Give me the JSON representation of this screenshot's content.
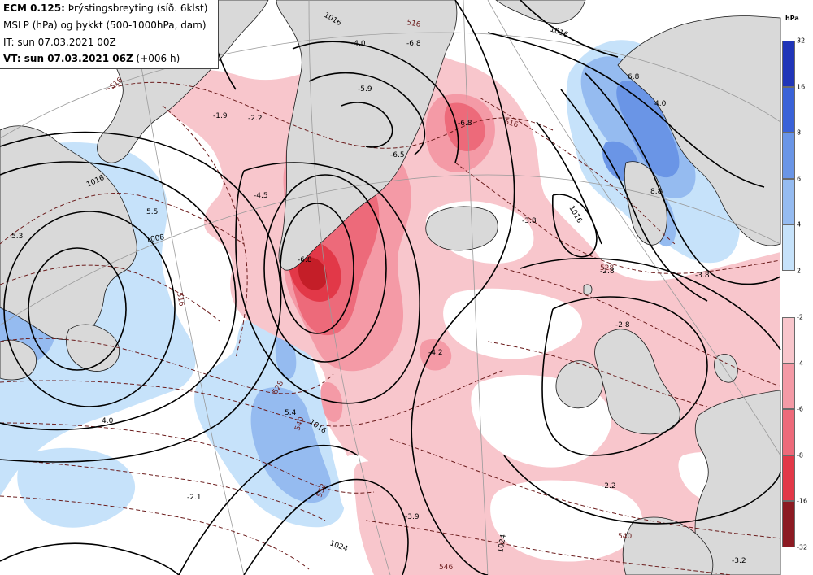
{
  "header": {
    "line1_bold": "ECM 0.125:",
    "line1_rest": " Þrýstingsbreyting (síð. 6klst)",
    "line2": "MSLP (hPa) og þykkt (500-1000hPa, dam)",
    "line3": "IT: sun 07.03.2021 00Z",
    "line4_bold": "VT: sun 07.03.2021 06Z",
    "line4_rest": " (+006 h)"
  },
  "legend": {
    "unit": "hPa",
    "rise": [
      {
        "label": "32",
        "color": "#2035b8"
      },
      {
        "label": "16",
        "color": "#3a62d8"
      },
      {
        "label": "8",
        "color": "#6a95e6"
      },
      {
        "label": "6",
        "color": "#95bbf0"
      },
      {
        "label": "4",
        "color": "#c6e2fa"
      },
      {
        "label": "2",
        "color": "#c6e2fa"
      }
    ],
    "fall": [
      {
        "label": "-2",
        "color": "#f8c6cc"
      },
      {
        "label": "-4",
        "color": "#f49aa6"
      },
      {
        "label": "-6",
        "color": "#ed6a7a"
      },
      {
        "label": "-8",
        "color": "#e23848"
      },
      {
        "label": "-16",
        "color": "#c41e28"
      },
      {
        "label": "-32",
        "color": "#8c1a22"
      }
    ]
  },
  "map_labels": {
    "isobar": [
      "1016",
      "1016",
      "1016",
      "1016",
      "1024",
      "1024",
      "1008",
      "1016"
    ],
    "thickness": [
      "516",
      "516",
      "516",
      "528",
      "528",
      "540",
      "516",
      "552",
      "540",
      "546"
    ],
    "tendency": [
      "-4.0",
      "-6.8",
      "-5.9",
      "-6.8",
      "-2.2",
      "-1.9",
      "-4.5",
      "-6.5",
      "-6.8",
      "-3.8",
      "-2.8",
      "-4.2",
      "-2.8",
      "-3.8",
      "-2.2",
      "-2.1",
      "-3.9",
      "-3.2",
      "4.0",
      "5.3",
      "6.8",
      "8.8",
      "5.4",
      "4.0",
      "5.5"
    ]
  }
}
